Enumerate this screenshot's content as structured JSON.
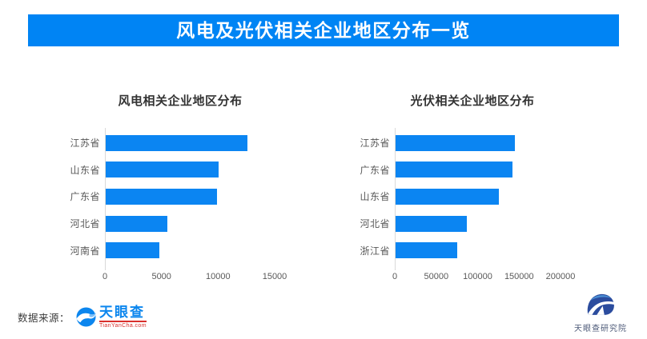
{
  "banner": {
    "title": "风电及光伏相关企业地区分布一览"
  },
  "chart_data": [
    {
      "type": "bar",
      "orientation": "horizontal",
      "title": "风电相关企业地区分布",
      "categories": [
        "江苏省",
        "山东省",
        "广东省",
        "河北省",
        "河南省"
      ],
      "values": [
        12500,
        10000,
        9850,
        5450,
        4750
      ],
      "xlim": [
        0,
        15000
      ],
      "xticks": [
        0,
        5000,
        10000,
        15000
      ],
      "grid": false,
      "legend": "none",
      "bar_color": "#0b85f2"
    },
    {
      "type": "bar",
      "orientation": "horizontal",
      "title": "光伏相关企业地区分布",
      "categories": [
        "江苏省",
        "广东省",
        "山东省",
        "河北省",
        "浙江省"
      ],
      "values": [
        144000,
        141000,
        125000,
        86000,
        74000
      ],
      "xlim": [
        0,
        200000
      ],
      "xticks": [
        0,
        50000,
        100000,
        150000,
        200000
      ],
      "grid": false,
      "legend": "none",
      "bar_color": "#0b85f2"
    }
  ],
  "footer": {
    "source_label": "数据来源：",
    "tianyancha": {
      "name": "天眼查",
      "url": "TianYanCha.com"
    },
    "research": {
      "name": "天眼查研究院"
    }
  },
  "colors": {
    "banner_bg": "#0084f4",
    "banner_text": "#ffffff",
    "bar": "#0b85f2",
    "axis_line": "#d9d9d9",
    "tick_text": "#595959",
    "category_text": "#595959",
    "chart_title_text": "#333333",
    "source_text": "#3d3d3d",
    "tyc_blue": "#0b86ee",
    "tyc_red": "#d9302c",
    "research_navy": "#2b4c9e",
    "research_light_blue": "#4b8fd4",
    "research_text": "#4d5a78"
  }
}
